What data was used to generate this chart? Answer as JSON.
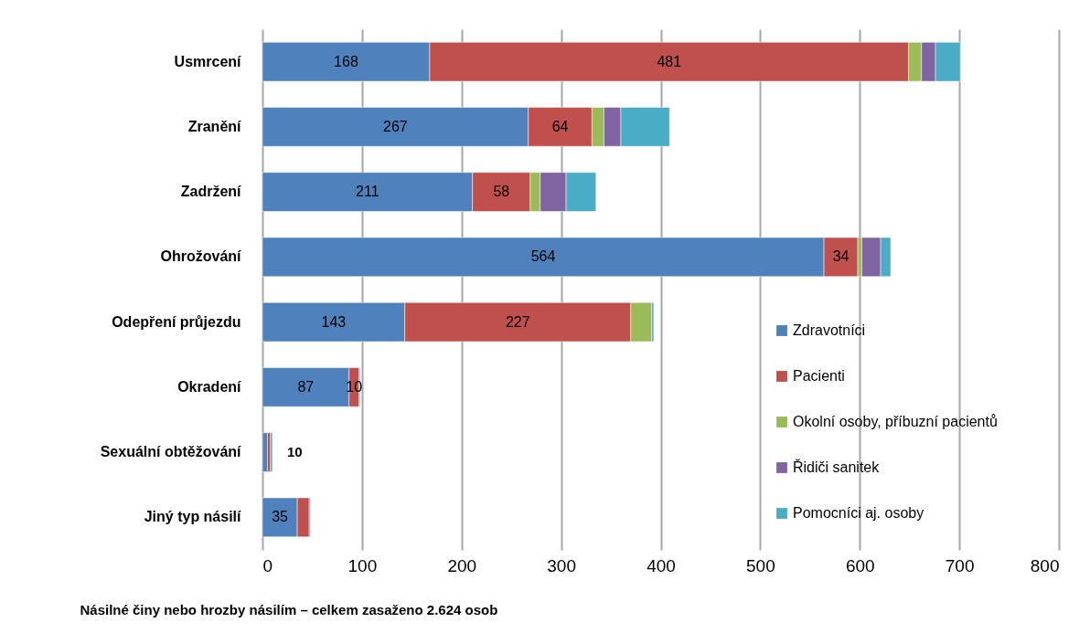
{
  "chart_data": {
    "type": "bar",
    "orientation": "horizontal",
    "stacked": true,
    "xlabel": "Násilné činy nebo hrozby násilím – celkem zasaženo 2.624 osob",
    "categories": [
      "Usmrcení",
      "Zranění",
      "Zadržení",
      "Ohrožování",
      "Odepření průjezdu",
      "Okradení",
      "Sexuální obtěžování",
      "Jiný typ násilí"
    ],
    "series": [
      {
        "name": "Zdravotníci",
        "color": "#4f81bd",
        "values": [
          168,
          267,
          211,
          564,
          143,
          87,
          5,
          35
        ],
        "value_labels": [
          "168",
          "267",
          "211",
          "564",
          "143",
          "87",
          null,
          "35"
        ]
      },
      {
        "name": "Pacienti",
        "color": "#c0504d",
        "values": [
          481,
          64,
          58,
          34,
          227,
          10,
          3,
          12
        ],
        "value_labels": [
          "481",
          "64",
          "58",
          "34",
          "227",
          "10",
          null,
          null
        ]
      },
      {
        "name": "Okolní osoby, příbuzní pacientů",
        "color": "#9bbb59",
        "values": [
          13,
          12,
          10,
          4,
          21,
          null,
          null,
          null
        ]
      },
      {
        "name": "Řidiči sanitek",
        "color": "#8064a2",
        "values": [
          14,
          17,
          26,
          19,
          null,
          1,
          null,
          1
        ]
      },
      {
        "name": "Pomocníci aj. osoby",
        "color": "#4bacc6",
        "values": [
          25,
          49,
          30,
          10,
          2,
          null,
          2,
          null
        ]
      }
    ],
    "totals": [
      null,
      null,
      null,
      null,
      null,
      null,
      "10",
      null
    ],
    "xlim": [
      0,
      800
    ],
    "xticks": [
      0,
      100,
      200,
      300,
      400,
      500,
      600,
      700,
      800
    ],
    "grid": "x",
    "legend": "bottom right"
  }
}
